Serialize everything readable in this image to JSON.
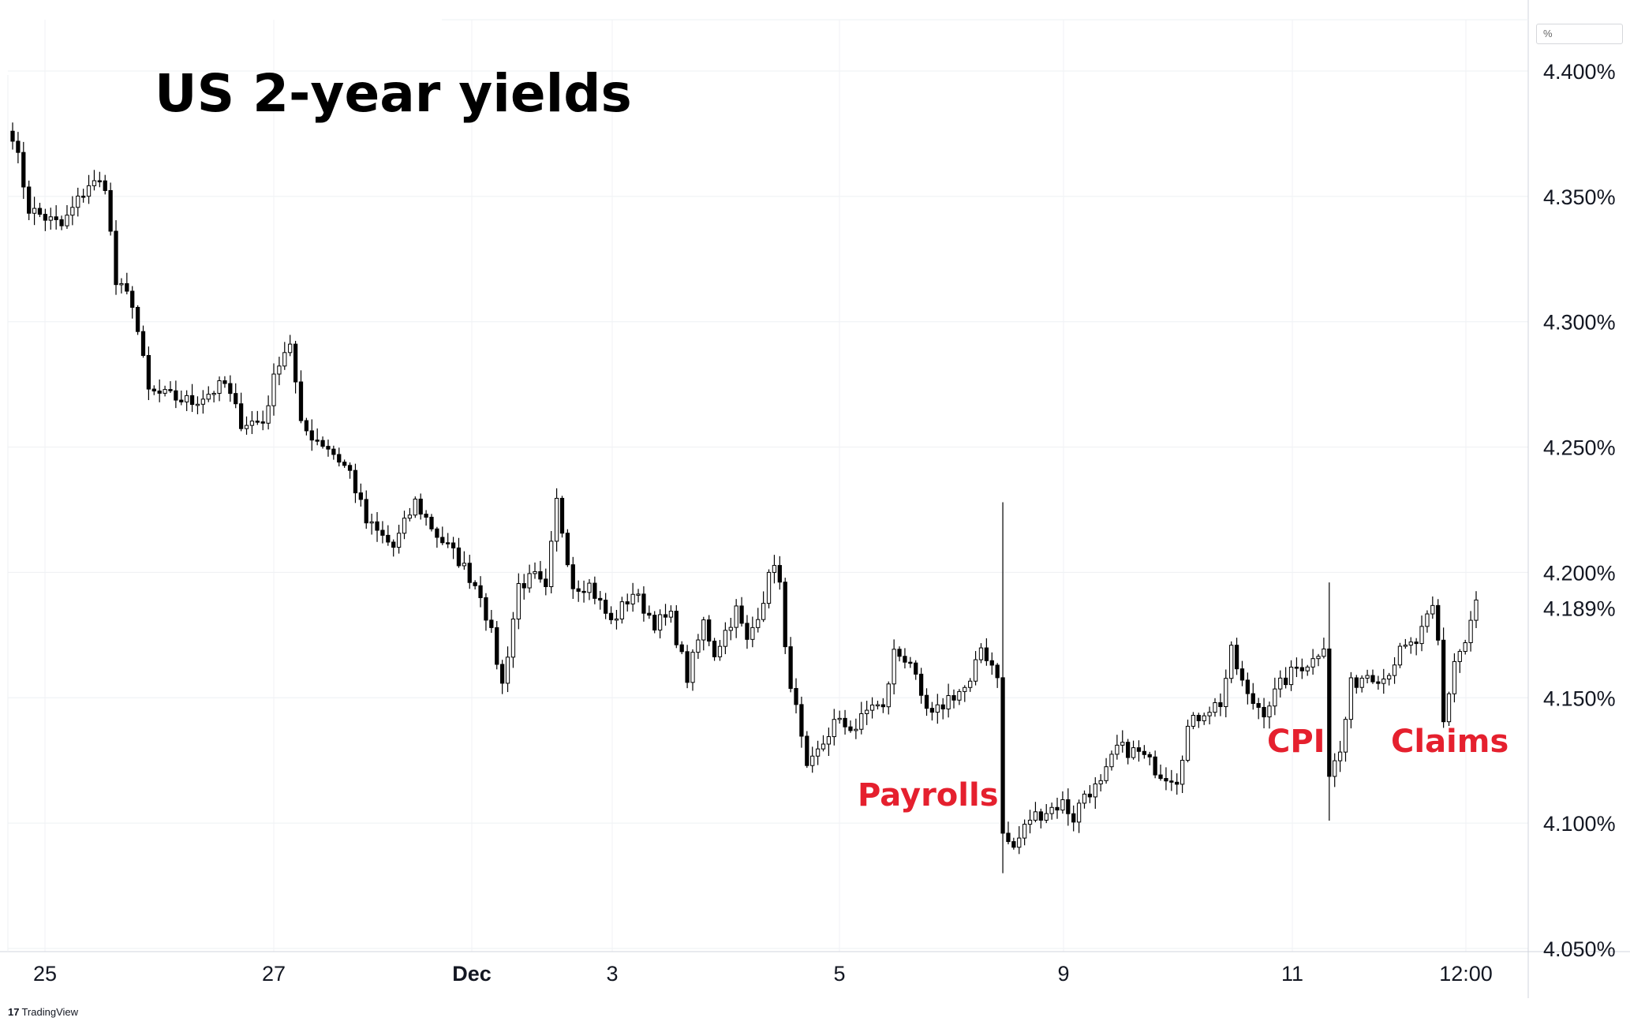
{
  "chart_data": {
    "type": "candlestick",
    "title": "US 2-year yields",
    "unit_label": "%",
    "y_range": [
      4.05,
      4.41
    ],
    "y_ticks": [
      "4.400%",
      "4.350%",
      "4.300%",
      "4.250%",
      "4.200%",
      "4.150%",
      "4.100%",
      "4.050%"
    ],
    "y_tick_values": [
      4.4,
      4.35,
      4.3,
      4.25,
      4.2,
      4.15,
      4.1,
      4.05
    ],
    "last_value_label": "4.189%",
    "last_value": 4.189,
    "x_ticks": [
      {
        "label": "25",
        "bold": false
      },
      {
        "label": "27",
        "bold": false
      },
      {
        "label": "Dec",
        "bold": true
      },
      {
        "label": "3",
        "bold": false
      },
      {
        "label": "5",
        "bold": false
      },
      {
        "label": "9",
        "bold": false
      },
      {
        "label": "11",
        "bold": false
      },
      {
        "label": "12:00",
        "bold": false
      }
    ],
    "annotations": [
      {
        "text": "Payrolls",
        "near": 4.108
      },
      {
        "text": "CPI",
        "near": 4.13
      },
      {
        "text": "Claims",
        "near": 4.13
      }
    ],
    "anchor_points": [
      [
        0,
        4.375
      ],
      [
        3,
        4.345
      ],
      [
        9,
        4.338
      ],
      [
        14,
        4.355
      ],
      [
        17,
        4.355
      ],
      [
        19,
        4.315
      ],
      [
        22,
        4.308
      ],
      [
        25,
        4.272
      ],
      [
        33,
        4.268
      ],
      [
        39,
        4.275
      ],
      [
        42,
        4.26
      ],
      [
        46,
        4.26
      ],
      [
        49,
        4.285
      ],
      [
        51,
        4.292
      ],
      [
        53,
        4.258
      ],
      [
        58,
        4.25
      ],
      [
        62,
        4.24
      ],
      [
        65,
        4.22
      ],
      [
        70,
        4.21
      ],
      [
        74,
        4.228
      ],
      [
        78,
        4.215
      ],
      [
        82,
        4.205
      ],
      [
        86,
        4.192
      ],
      [
        88,
        4.175
      ],
      [
        90,
        4.155
      ],
      [
        93,
        4.195
      ],
      [
        96,
        4.198
      ],
      [
        98,
        4.192
      ],
      [
        100,
        4.228
      ],
      [
        103,
        4.195
      ],
      [
        106,
        4.195
      ],
      [
        110,
        4.18
      ],
      [
        114,
        4.192
      ],
      [
        118,
        4.18
      ],
      [
        121,
        4.182
      ],
      [
        124,
        4.158
      ],
      [
        127,
        4.18
      ],
      [
        129,
        4.168
      ],
      [
        133,
        4.185
      ],
      [
        135,
        4.172
      ],
      [
        138,
        4.19
      ],
      [
        140,
        4.205
      ],
      [
        141,
        4.195
      ],
      [
        142,
        4.168
      ],
      [
        144,
        4.145
      ],
      [
        146,
        4.12
      ],
      [
        148,
        4.128
      ],
      [
        151,
        4.14
      ],
      [
        155,
        4.138
      ],
      [
        158,
        4.148
      ],
      [
        160,
        4.145
      ],
      [
        162,
        4.168
      ],
      [
        165,
        4.165
      ],
      [
        167,
        4.148
      ],
      [
        169,
        4.142
      ],
      [
        172,
        4.15
      ],
      [
        176,
        4.155
      ],
      [
        178,
        4.17
      ],
      [
        181,
        4.16
      ],
      [
        182,
        4.095
      ],
      [
        184,
        4.09
      ],
      [
        187,
        4.102
      ],
      [
        190,
        4.105
      ],
      [
        193,
        4.108
      ],
      [
        195,
        4.102
      ],
      [
        197,
        4.112
      ],
      [
        200,
        4.115
      ],
      [
        203,
        4.13
      ],
      [
        207,
        4.128
      ],
      [
        211,
        4.12
      ],
      [
        214,
        4.118
      ],
      [
        216,
        4.138
      ],
      [
        219,
        4.145
      ],
      [
        222,
        4.148
      ],
      [
        224,
        4.168
      ],
      [
        227,
        4.15
      ],
      [
        230,
        4.145
      ],
      [
        233,
        4.155
      ],
      [
        236,
        4.162
      ],
      [
        239,
        4.165
      ],
      [
        241,
        4.172
      ],
      [
        242,
        4.12
      ],
      [
        244,
        4.128
      ],
      [
        246,
        4.155
      ],
      [
        249,
        4.16
      ],
      [
        252,
        4.158
      ],
      [
        255,
        4.168
      ],
      [
        258,
        4.172
      ],
      [
        261,
        4.185
      ],
      [
        262,
        4.172
      ],
      [
        263,
        4.14
      ],
      [
        265,
        4.165
      ],
      [
        267,
        4.172
      ],
      [
        269,
        4.189
      ]
    ],
    "shocks": [
      {
        "index": 182,
        "high": 4.228,
        "low": 4.08
      },
      {
        "index": 242,
        "high": 4.196,
        "low": 4.101
      },
      {
        "index": 263,
        "high": 4.178,
        "low": 4.138
      }
    ],
    "bar_count": 270
  }
}
